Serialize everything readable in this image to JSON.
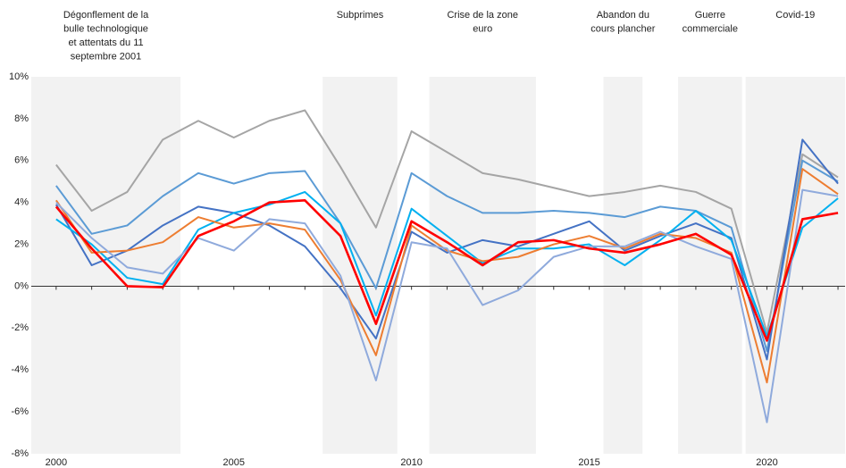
{
  "chart_data": {
    "type": "line",
    "x": [
      2000,
      2001,
      2002,
      2003,
      2004,
      2005,
      2006,
      2007,
      2008,
      2009,
      2010,
      2011,
      2012,
      2013,
      2014,
      2015,
      2016,
      2017,
      2018,
      2019,
      2020,
      2021,
      2022
    ],
    "xlim": [
      1999.3,
      2022.2
    ],
    "xticks": [
      2000,
      2005,
      2010,
      2015,
      2020
    ],
    "ylim": [
      -8,
      10
    ],
    "yticks": [
      {
        "value": -8,
        "label": "-8%"
      },
      {
        "value": -6,
        "label": "-6%"
      },
      {
        "value": -4,
        "label": "-4%"
      },
      {
        "value": -2,
        "label": "-2%"
      },
      {
        "value": 0,
        "label": "0%"
      },
      {
        "value": 2,
        "label": "2%"
      },
      {
        "value": 4,
        "label": "4%"
      },
      {
        "value": 6,
        "label": "6%"
      },
      {
        "value": 8,
        "label": "8%"
      },
      {
        "value": 10,
        "label": "10%"
      }
    ],
    "periods": [
      {
        "label": [
          "Dégonflement de la",
          "bulle technologique",
          "et attentats du 11",
          "septembre 2001"
        ],
        "start": 1999.3,
        "end": 2003.5,
        "shaded": true
      },
      {
        "label": [
          "Subprimes"
        ],
        "start": 2007.5,
        "end": 2009.6,
        "shaded": true
      },
      {
        "label": [
          "Crise de la zone",
          "euro"
        ],
        "start": 2010.5,
        "end": 2013.5,
        "shaded": true
      },
      {
        "label": [
          "Abandon du",
          "cours plancher"
        ],
        "start": 2015.4,
        "end": 2016.5,
        "shaded": true
      },
      {
        "label": [
          "Guerre",
          "commerciale"
        ],
        "start": 2017.5,
        "end": 2019.3,
        "shaded": true
      },
      {
        "label": [
          "Covid-19"
        ],
        "start": 2019.4,
        "end": 2022.2,
        "shaded": true
      }
    ],
    "series": [
      {
        "color": "#a5a5a5",
        "width": 2,
        "values": [
          5.8,
          3.6,
          4.5,
          7.0,
          7.9,
          7.1,
          7.9,
          8.4,
          5.7,
          2.8,
          7.4,
          6.4,
          5.4,
          5.1,
          4.7,
          4.3,
          4.5,
          4.8,
          4.5,
          3.7,
          -2.2,
          6.3,
          5.2
        ]
      },
      {
        "color": "#5b9bd5",
        "width": 2,
        "values": [
          4.8,
          2.5,
          2.9,
          4.3,
          5.4,
          4.9,
          5.4,
          5.5,
          3.0,
          -0.1,
          5.4,
          4.3,
          3.5,
          3.5,
          3.6,
          3.5,
          3.3,
          3.8,
          3.6,
          2.8,
          -3.1,
          6.0,
          5.0
        ]
      },
      {
        "color": "#4472c4",
        "width": 2,
        "values": [
          3.9,
          1.0,
          1.7,
          2.9,
          3.8,
          3.5,
          2.9,
          1.9,
          -0.1,
          -2.5,
          2.6,
          1.6,
          2.2,
          1.9,
          2.5,
          3.1,
          1.7,
          2.4,
          3.0,
          2.3,
          -3.5,
          7.0,
          4.9
        ]
      },
      {
        "color": "#00b0f0",
        "width": 2,
        "values": [
          3.2,
          2.0,
          0.4,
          0.1,
          2.7,
          3.5,
          3.9,
          4.5,
          3.0,
          -1.4,
          3.7,
          2.4,
          1.1,
          1.8,
          1.8,
          2.0,
          1.0,
          2.2,
          3.6,
          2.2,
          -2.4,
          2.8,
          4.2
        ]
      },
      {
        "color": "#ed7d31",
        "width": 2,
        "values": [
          4.1,
          1.6,
          1.7,
          2.1,
          3.3,
          2.8,
          3.0,
          2.7,
          0.3,
          -3.3,
          2.9,
          1.7,
          1.2,
          1.4,
          2.0,
          2.4,
          1.8,
          2.5,
          2.3,
          1.6,
          -4.6,
          5.6,
          4.4
        ]
      },
      {
        "color": "#8faadc",
        "width": 2,
        "values": [
          4.0,
          2.3,
          0.9,
          0.6,
          2.3,
          1.7,
          3.2,
          3.0,
          0.5,
          -4.5,
          2.1,
          1.8,
          -0.9,
          -0.2,
          1.4,
          1.9,
          1.9,
          2.6,
          1.9,
          1.3,
          -6.5,
          4.6,
          4.3
        ]
      },
      {
        "color": "#ff0000",
        "width": 2.6,
        "values": [
          3.8,
          1.8,
          0.0,
          -0.05,
          2.4,
          3.1,
          4.0,
          4.1,
          2.4,
          -1.8,
          3.1,
          2.1,
          1.0,
          2.1,
          2.2,
          1.8,
          1.6,
          2.0,
          2.5,
          1.5,
          -2.6,
          3.2,
          3.5
        ]
      }
    ]
  }
}
